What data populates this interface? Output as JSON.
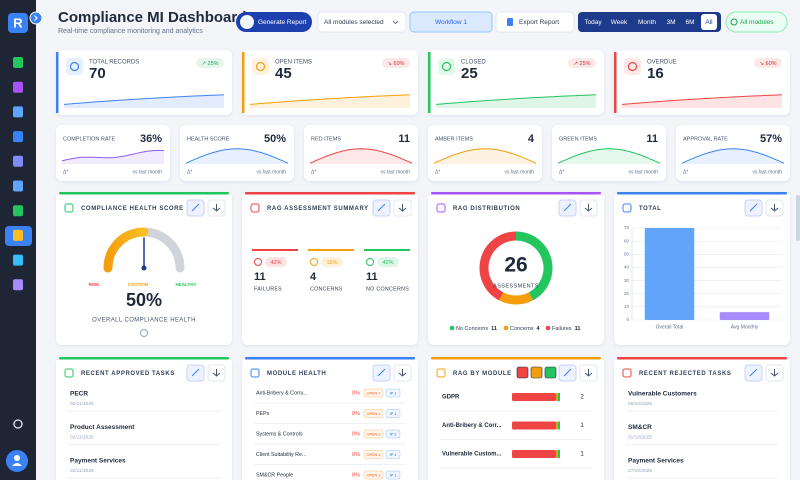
{
  "sidebar": {
    "logo": "R"
  },
  "header": {
    "title": "Compliance MI Dashboard",
    "subtitle": "Real-time compliance monitoring and analytics",
    "generate": "Generate Report",
    "modules_select": "All modules selected",
    "workflow": "Workflow 1",
    "export": "Export Report",
    "ranges": [
      "Today",
      "Week",
      "Month",
      "3M",
      "6M",
      "All"
    ],
    "active_range": 5,
    "modules_chip": "All modules"
  },
  "kpis": [
    {
      "label": "TOTAL RECORDS",
      "value": 70,
      "change": "↗ 25%",
      "color": "#3b82f6",
      "change_color": "#16a34a"
    },
    {
      "label": "OPEN ITEMS",
      "value": 45,
      "change": "↘ 60%",
      "color": "#f59e0b",
      "change_color": "#dc2626"
    },
    {
      "label": "CLOSED",
      "value": 25,
      "change": "↗ 25%",
      "color": "#22c55e",
      "change_color": "#dc2626"
    },
    {
      "label": "OVERDUE",
      "value": 16,
      "change": "↘ 60%",
      "color": "#ef4444",
      "change_color": "#dc2626"
    }
  ],
  "stats": [
    {
      "label": "COMPLETION RATE",
      "value": "36%",
      "delta": "Δ*",
      "note": "vs last month",
      "color": "#8b5cf6"
    },
    {
      "label": "HEALTH SCORE",
      "value": "50%",
      "delta": "Δ*",
      "note": "vs last month",
      "color": "#3b82f6"
    },
    {
      "label": "RED ITEMS",
      "value": "11",
      "delta": "Δ*",
      "note": "vs last month",
      "color": "#ef4444"
    },
    {
      "label": "AMBER ITEMS",
      "value": "4",
      "delta": "Δ*",
      "note": "vs last month",
      "color": "#f59e0b"
    },
    {
      "label": "GREEN ITEMS",
      "value": "11",
      "delta": "Δ*",
      "note": "vs last month",
      "color": "#22c55e"
    },
    {
      "label": "APPROVAL RATE",
      "value": "57%",
      "delta": "Δ*",
      "note": "vs last month",
      "color": "#3b82f6"
    }
  ],
  "health": {
    "title": "COMPLIANCE HEALTH SCORE",
    "value": 50,
    "value_label": "50%",
    "lim": [
      0,
      100
    ],
    "zones": [
      "RISK",
      "CAUTION",
      "HEALTHY"
    ],
    "caption": "OVERALL COMPLIANCE HEALTH"
  },
  "rag_summary": {
    "title": "RAG ASSESSMENT SUMMARY",
    "items": [
      {
        "pct": "42%",
        "count": 11,
        "label": "FAILURES",
        "color": "#ef4444"
      },
      {
        "pct": "15%",
        "count": 4,
        "label": "CONCERNS",
        "color": "#f59e0b"
      },
      {
        "pct": "42%",
        "count": 11,
        "label": "NO CONCERNS",
        "color": "#22c55e"
      }
    ]
  },
  "rag_distribution": {
    "title": "RAG DISTRIBUTION",
    "total": 26,
    "caption": "ASSESSMENTS",
    "series": [
      {
        "name": "No Concerns",
        "value": 11,
        "color": "#22c55e"
      },
      {
        "name": "Concerns",
        "value": 4,
        "color": "#f59e0b"
      },
      {
        "name": "Failures",
        "value": 11,
        "color": "#ef4444"
      }
    ]
  },
  "total": {
    "title": "TOTAL",
    "categories": [
      "Overall Total",
      "Avg Monthly"
    ],
    "values": [
      70,
      6
    ],
    "colors": [
      "#60a5fa",
      "#a78bfa"
    ],
    "ylim": [
      0,
      70
    ],
    "yticks": [
      0,
      10,
      20,
      30,
      40,
      50,
      60,
      70
    ]
  },
  "approved": {
    "title": "RECENT APPROVED TASKS",
    "items": [
      {
        "name": "PECR",
        "date": "02/11/2025"
      },
      {
        "name": "Product Assessment",
        "date": "02/11/2025"
      },
      {
        "name": "Payment Services",
        "date": "02/11/2025"
      }
    ]
  },
  "module_health": {
    "title": "MODULE HEALTH",
    "rows": [
      {
        "name": "Anti-Bribery & Corru...",
        "pct": "0%",
        "open": "OPEN 1",
        "ip": "IP 1"
      },
      {
        "name": "PEPs",
        "pct": "0%",
        "open": "OPEN 1",
        "ip": "IP 1"
      },
      {
        "name": "Systems & Controls",
        "pct": "0%",
        "open": "OPEN 2",
        "ip": "IP 2"
      },
      {
        "name": "Client Suitability Re...",
        "pct": "0%",
        "open": "OPEN 1",
        "ip": "IP 1"
      },
      {
        "name": "SM&CR People",
        "pct": "0%",
        "open": "OPEN 1",
        "ip": "IP 1"
      }
    ]
  },
  "rag_module": {
    "title": "RAG BY MODULE",
    "rows": [
      {
        "name": "GDPR",
        "count": 2
      },
      {
        "name": "Anti-Bribery & Corr...",
        "count": 1
      },
      {
        "name": "Vulnerable Custom...",
        "count": 1
      }
    ]
  },
  "rejected": {
    "title": "RECENT REJECTED TASKS",
    "items": [
      {
        "name": "Vulnerable Customers",
        "date": "06/10/2025"
      },
      {
        "name": "SM&CR",
        "date": "01/10/2025"
      },
      {
        "name": "Payment Services",
        "date": "27/10/2025"
      }
    ]
  }
}
